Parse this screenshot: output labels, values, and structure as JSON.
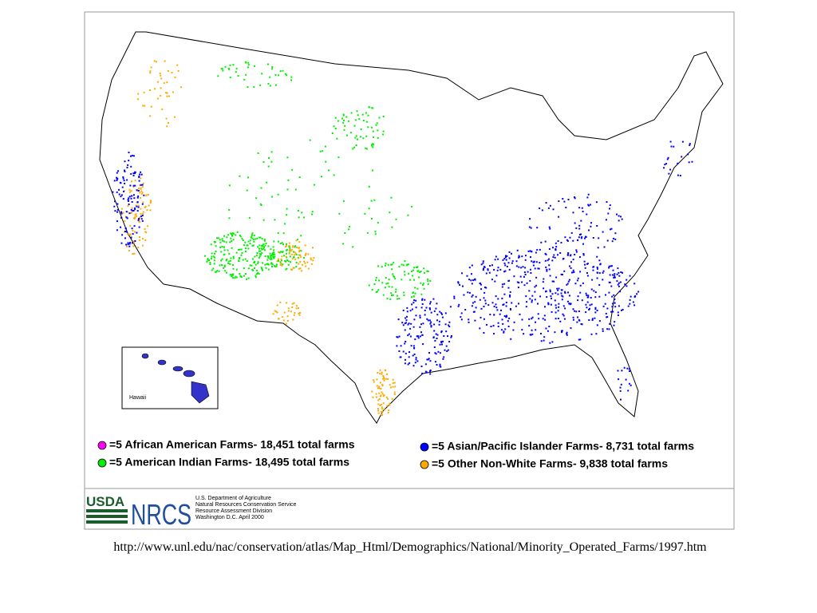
{
  "map": {
    "inset_label": "Hawaii"
  },
  "legend": {
    "items": [
      {
        "label": "=5 African American Farms- 18,451 total farms",
        "color": "#ff00ff"
      },
      {
        "label": "=5 American Indian Farms- 18,495 total farms",
        "color": "#00ee00"
      },
      {
        "label": "=5 Asian/Pacific Islander Farms- 8,731 total farms",
        "color": "#0000ff"
      },
      {
        "label": "=5 Other Non-White Farms- 9,838 total farms",
        "color": "#ffaa00"
      }
    ]
  },
  "footer": {
    "logo": {
      "usda": "USDA",
      "nrcs": "NRCS"
    },
    "credits": [
      "U.S. Department of Agriculture",
      "Natural Resources Conservation Service",
      "Resource Assessment Division",
      "Washington D.C. April 2000"
    ]
  },
  "source_url": "http://www.unl.edu/nac/conservation/atlas/Map_Html/Demographics/National/Minority_Operated_Farms/1997.htm"
}
